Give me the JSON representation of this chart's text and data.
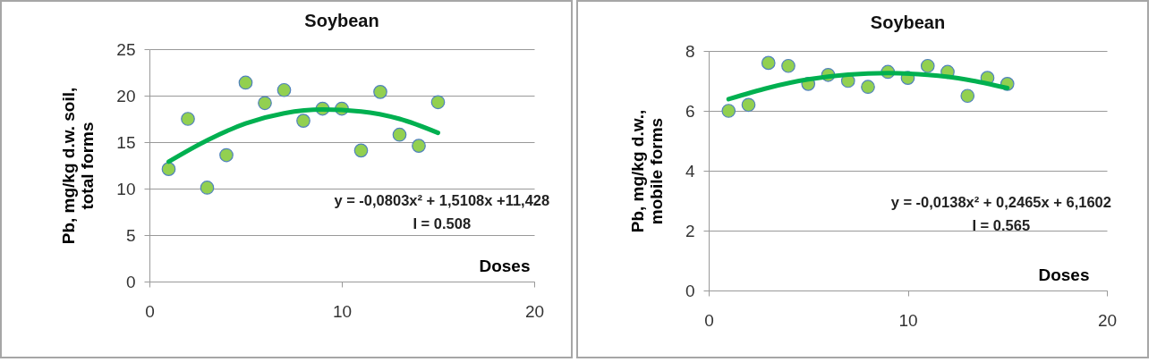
{
  "chart_data": [
    {
      "type": "scatter",
      "title": "Soybean",
      "xlabel": "Doses",
      "ylabel": "Pb, mg/kg d.w. soil,\ntotal forms",
      "x": [
        1,
        2,
        3,
        4,
        5,
        6,
        7,
        8,
        9,
        10,
        11,
        12,
        13,
        14,
        15
      ],
      "xlim": [
        0,
        20
      ],
      "xticks": [
        0,
        10,
        20
      ],
      "ylim": [
        0,
        25
      ],
      "yticks": [
        0,
        5,
        10,
        15,
        20,
        25
      ],
      "grid": "y",
      "series": [
        {
          "color": "#92d050",
          "marker": "circle",
          "values": [
            12.1,
            17.5,
            10.1,
            13.6,
            21.4,
            19.2,
            20.6,
            17.3,
            18.6,
            18.6,
            14.1,
            20.4,
            15.8,
            14.6,
            19.3
          ]
        },
        {
          "type": "line",
          "color": "#00b050",
          "x": [
            1,
            3,
            5,
            7,
            9,
            11,
            13,
            15
          ],
          "values": [
            12.9,
            15.2,
            17.0,
            18.1,
            18.5,
            18.3,
            17.5,
            16.0
          ]
        }
      ],
      "annotations": [
        "y = -0,0803x² + 1,5108x +11,428",
        "I = 0.508"
      ]
    },
    {
      "type": "scatter",
      "title": "Soybean",
      "xlabel": "Doses",
      "ylabel": "Pb, mg/kg d.w.,\nmobile forms",
      "x": [
        1,
        2,
        3,
        4,
        5,
        6,
        7,
        8,
        9,
        10,
        11,
        12,
        13,
        14,
        15
      ],
      "xlim": [
        0,
        20
      ],
      "xticks": [
        0,
        10,
        20
      ],
      "ylim": [
        0,
        8
      ],
      "yticks": [
        0,
        2,
        4,
        6,
        8
      ],
      "grid": "y",
      "series": [
        {
          "color": "#92d050",
          "marker": "circle",
          "values": [
            6.0,
            6.2,
            7.6,
            7.5,
            6.9,
            7.2,
            7.0,
            6.8,
            7.3,
            7.1,
            7.5,
            7.3,
            6.5,
            7.1,
            6.9
          ]
        },
        {
          "type": "line",
          "color": "#00b050",
          "x": [
            1,
            3,
            5,
            7,
            9,
            11,
            13,
            15
          ],
          "values": [
            6.39,
            6.77,
            7.05,
            7.21,
            7.26,
            7.2,
            7.04,
            6.76
          ]
        }
      ],
      "annotations": [
        "y = -0,0138x² + 0,2465x + 6,1602",
        "I = 0.565"
      ]
    }
  ]
}
